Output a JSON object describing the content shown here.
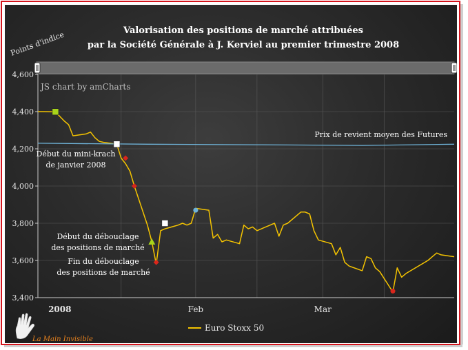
{
  "chart_data": {
    "type": "line",
    "title_line1": "Valorisation des positions de marché attribuées",
    "title_line2": "par la Société Générale à J. Kerviel au premier trimestre 2008",
    "ylabel": "Points d'indice",
    "ylim": [
      3400,
      4600
    ],
    "yticks": [
      "3,400",
      "3,600",
      "3,800",
      "4,000",
      "4,200",
      "4,400",
      "4,600"
    ],
    "ytick_values": [
      3400,
      3600,
      3800,
      4000,
      4200,
      4400,
      4600
    ],
    "xlim": [
      "2007-12-27",
      "2008-03-31"
    ],
    "xticks": [
      {
        "label": "2008",
        "date": "2008-01-01",
        "bold": true
      },
      {
        "label": "Feb",
        "date": "2008-02-01",
        "bold": false
      },
      {
        "label": "Mar",
        "date": "2008-03-01",
        "bold": false
      }
    ],
    "gridlines": [
      "2008-01-15",
      "2008-02-01",
      "2008-02-15",
      "2008-03-01",
      "2008-03-15"
    ],
    "legend": "bottom-center",
    "series": [
      {
        "name": "Euro Stoxx 50",
        "color": "#f5c400",
        "points": [
          [
            "2007-12-27",
            4400
          ],
          [
            "2007-12-28",
            4400
          ],
          [
            "2007-12-31",
            4399
          ],
          [
            "2008-01-02",
            4350
          ],
          [
            "2008-01-03",
            4330
          ],
          [
            "2008-01-04",
            4270
          ],
          [
            "2008-01-07",
            4280
          ],
          [
            "2008-01-08",
            4290
          ],
          [
            "2008-01-09",
            4260
          ],
          [
            "2008-01-10",
            4240
          ],
          [
            "2008-01-11",
            4235
          ],
          [
            "2008-01-14",
            4225
          ],
          [
            "2008-01-15",
            4150
          ],
          [
            "2008-01-16",
            4120
          ],
          [
            "2008-01-17",
            4080
          ],
          [
            "2008-01-18",
            4000
          ],
          [
            "2008-01-21",
            3790
          ],
          [
            "2008-01-22",
            3700
          ],
          [
            "2008-01-23",
            3580
          ],
          [
            "2008-01-24",
            3760
          ],
          [
            "2008-01-25",
            3770
          ],
          [
            "2008-01-28",
            3790
          ],
          [
            "2008-01-29",
            3800
          ],
          [
            "2008-01-30",
            3790
          ],
          [
            "2008-01-31",
            3800
          ],
          [
            "2008-02-01",
            3880
          ],
          [
            "2008-02-04",
            3870
          ],
          [
            "2008-02-05",
            3720
          ],
          [
            "2008-02-06",
            3740
          ],
          [
            "2008-02-07",
            3700
          ],
          [
            "2008-02-08",
            3710
          ],
          [
            "2008-02-11",
            3690
          ],
          [
            "2008-02-12",
            3790
          ],
          [
            "2008-02-13",
            3770
          ],
          [
            "2008-02-14",
            3780
          ],
          [
            "2008-02-15",
            3760
          ],
          [
            "2008-02-18",
            3790
          ],
          [
            "2008-02-19",
            3800
          ],
          [
            "2008-02-20",
            3730
          ],
          [
            "2008-02-21",
            3790
          ],
          [
            "2008-02-22",
            3800
          ],
          [
            "2008-02-25",
            3860
          ],
          [
            "2008-02-26",
            3860
          ],
          [
            "2008-02-27",
            3850
          ],
          [
            "2008-02-28",
            3760
          ],
          [
            "2008-02-29",
            3710
          ],
          [
            "2008-03-03",
            3690
          ],
          [
            "2008-03-04",
            3630
          ],
          [
            "2008-03-05",
            3670
          ],
          [
            "2008-03-06",
            3590
          ],
          [
            "2008-03-07",
            3570
          ],
          [
            "2008-03-10",
            3545
          ],
          [
            "2008-03-11",
            3620
          ],
          [
            "2008-03-12",
            3610
          ],
          [
            "2008-03-13",
            3560
          ],
          [
            "2008-03-14",
            3540
          ],
          [
            "2008-03-17",
            3430
          ],
          [
            "2008-03-18",
            3560
          ],
          [
            "2008-03-19",
            3510
          ],
          [
            "2008-03-20",
            3530
          ],
          [
            "2008-03-25",
            3600
          ],
          [
            "2008-03-26",
            3620
          ],
          [
            "2008-03-27",
            3640
          ],
          [
            "2008-03-28",
            3630
          ],
          [
            "2008-03-31",
            3620
          ]
        ]
      },
      {
        "name": "Prix de revient moyen des Futures",
        "color": "#6fb3d8",
        "points": [
          [
            "2007-12-27",
            4230
          ],
          [
            "2008-01-21",
            4225
          ],
          [
            "2008-02-15",
            4222
          ],
          [
            "2008-03-10",
            4218
          ],
          [
            "2008-03-31",
            4225
          ]
        ]
      }
    ],
    "markers": [
      {
        "date": "2007-12-31",
        "value": 4399,
        "shape": "square",
        "color": "#a8d41a"
      },
      {
        "date": "2008-01-14",
        "value": 4225,
        "shape": "square",
        "color": "#ffffff"
      },
      {
        "date": "2008-01-16",
        "value": 4150,
        "shape": "diamond",
        "color": "#d9261c"
      },
      {
        "date": "2008-01-18",
        "value": 4000,
        "shape": "diamond",
        "color": "#d9261c"
      },
      {
        "date": "2008-01-22",
        "value": 3700,
        "shape": "triangle",
        "color": "#a8d41a"
      },
      {
        "date": "2008-01-23",
        "value": 3590,
        "shape": "diamond",
        "color": "#d9261c"
      },
      {
        "date": "2008-01-25",
        "value": 3800,
        "shape": "square",
        "color": "#ffffff"
      },
      {
        "date": "2008-02-01",
        "value": 3870,
        "shape": "circle",
        "color": "#6fb3d8"
      },
      {
        "date": "2008-03-17",
        "value": 3435,
        "shape": "circle",
        "color": "#d9261c"
      }
    ],
    "annotations": [
      {
        "lines": [
          "Début du mini-krach",
          "de janvier 2008"
        ]
      },
      {
        "lines": [
          "Début du débouclage",
          "des positions de marché"
        ]
      },
      {
        "lines": [
          "Fin du débouclage",
          "des positions de marché"
        ]
      },
      {
        "lines": [
          "Prix de revient moyen des Futures"
        ]
      }
    ]
  },
  "credit": "JS chart by amCharts",
  "legend_label": "Euro Stoxx 50",
  "logo_text": "La Main Invisible",
  "colors": {
    "frame": "#d4141c",
    "line": "#f5c400",
    "reference": "#6fb3d8",
    "background": "#2c2c2c"
  },
  "icons": [
    "scrollbar-left-grip-icon",
    "scrollbar-right-grip-icon",
    "hand-logo-icon"
  ]
}
